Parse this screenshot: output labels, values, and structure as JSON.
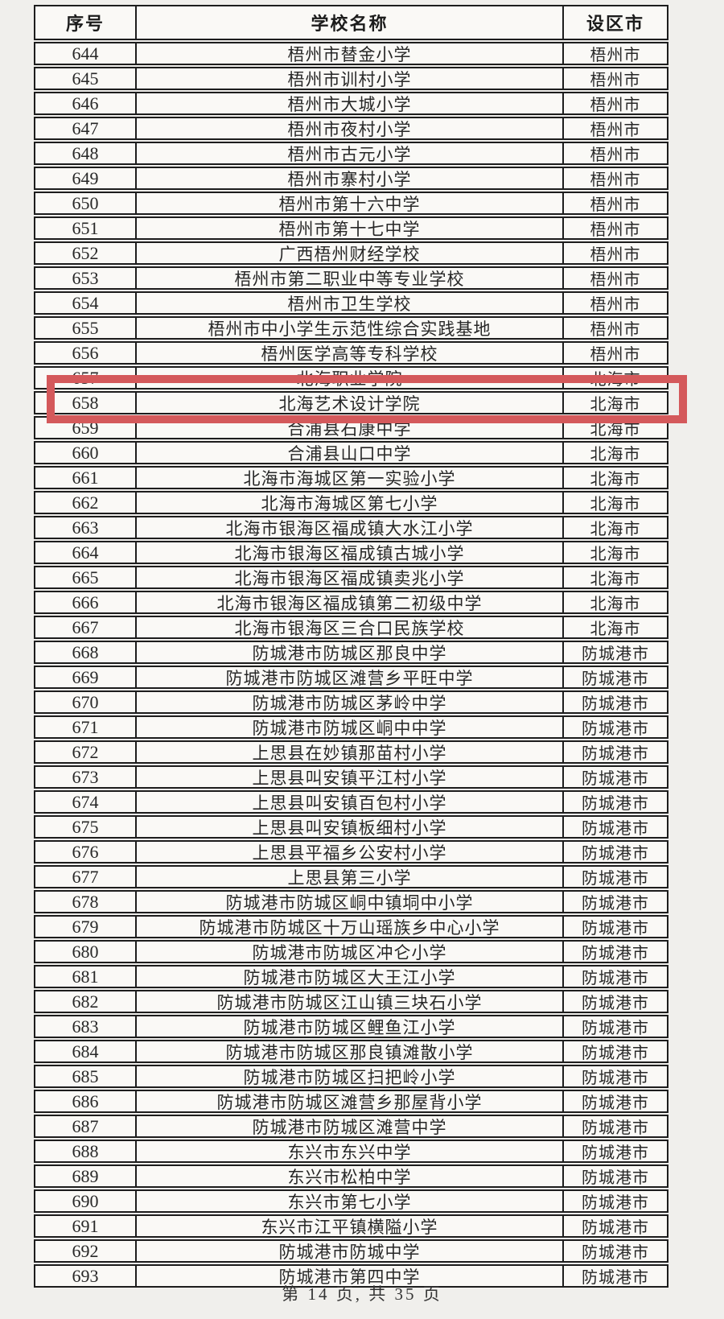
{
  "page": {
    "footer": "第 14 页, 共 35 页"
  },
  "table": {
    "headers": {
      "serial": "序号",
      "school": "学校名称",
      "city": "设区市"
    },
    "highlight_serial": "658",
    "highlight_color": "#d4595b",
    "rows": [
      {
        "serial": "644",
        "school": "梧州市替金小学",
        "city": "梧州市"
      },
      {
        "serial": "645",
        "school": "梧州市训村小学",
        "city": "梧州市"
      },
      {
        "serial": "646",
        "school": "梧州市大城小学",
        "city": "梧州市"
      },
      {
        "serial": "647",
        "school": "梧州市夜村小学",
        "city": "梧州市"
      },
      {
        "serial": "648",
        "school": "梧州市古元小学",
        "city": "梧州市"
      },
      {
        "serial": "649",
        "school": "梧州市寨村小学",
        "city": "梧州市"
      },
      {
        "serial": "650",
        "school": "梧州市第十六中学",
        "city": "梧州市"
      },
      {
        "serial": "651",
        "school": "梧州市第十七中学",
        "city": "梧州市"
      },
      {
        "serial": "652",
        "school": "广西梧州财经学校",
        "city": "梧州市"
      },
      {
        "serial": "653",
        "school": "梧州市第二职业中等专业学校",
        "city": "梧州市"
      },
      {
        "serial": "654",
        "school": "梧州市卫生学校",
        "city": "梧州市"
      },
      {
        "serial": "655",
        "school": "梧州市中小学生示范性综合实践基地",
        "city": "梧州市"
      },
      {
        "serial": "656",
        "school": "梧州医学高等专科学校",
        "city": "梧州市"
      },
      {
        "serial": "657",
        "school": "北海职业学院",
        "city": "北海市"
      },
      {
        "serial": "658",
        "school": "北海艺术设计学院",
        "city": "北海市"
      },
      {
        "serial": "659",
        "school": "合浦县石康中学",
        "city": "北海市"
      },
      {
        "serial": "660",
        "school": "合浦县山口中学",
        "city": "北海市"
      },
      {
        "serial": "661",
        "school": "北海市海城区第一实验小学",
        "city": "北海市"
      },
      {
        "serial": "662",
        "school": "北海市海城区第七小学",
        "city": "北海市"
      },
      {
        "serial": "663",
        "school": "北海市银海区福成镇大水江小学",
        "city": "北海市"
      },
      {
        "serial": "664",
        "school": "北海市银海区福成镇古城小学",
        "city": "北海市"
      },
      {
        "serial": "665",
        "school": "北海市银海区福成镇卖兆小学",
        "city": "北海市"
      },
      {
        "serial": "666",
        "school": "北海市银海区福成镇第二初级中学",
        "city": "北海市"
      },
      {
        "serial": "667",
        "school": "北海市银海区三合口民族学校",
        "city": "北海市"
      },
      {
        "serial": "668",
        "school": "防城港市防城区那良中学",
        "city": "防城港市"
      },
      {
        "serial": "669",
        "school": "防城港市防城区滩营乡平旺中学",
        "city": "防城港市"
      },
      {
        "serial": "670",
        "school": "防城港市防城区茅岭中学",
        "city": "防城港市"
      },
      {
        "serial": "671",
        "school": "防城港市防城区峒中中学",
        "city": "防城港市"
      },
      {
        "serial": "672",
        "school": "上思县在妙镇那苗村小学",
        "city": "防城港市"
      },
      {
        "serial": "673",
        "school": "上思县叫安镇平江村小学",
        "city": "防城港市"
      },
      {
        "serial": "674",
        "school": "上思县叫安镇百包村小学",
        "city": "防城港市"
      },
      {
        "serial": "675",
        "school": "上思县叫安镇板细村小学",
        "city": "防城港市"
      },
      {
        "serial": "676",
        "school": "上思县平福乡公安村小学",
        "city": "防城港市"
      },
      {
        "serial": "677",
        "school": "上思县第三小学",
        "city": "防城港市"
      },
      {
        "serial": "678",
        "school": "防城港市防城区峒中镇垌中小学",
        "city": "防城港市"
      },
      {
        "serial": "679",
        "school": "防城港市防城区十万山瑶族乡中心小学",
        "city": "防城港市"
      },
      {
        "serial": "680",
        "school": "防城港市防城区冲仑小学",
        "city": "防城港市"
      },
      {
        "serial": "681",
        "school": "防城港市防城区大王江小学",
        "city": "防城港市"
      },
      {
        "serial": "682",
        "school": "防城港市防城区江山镇三块石小学",
        "city": "防城港市"
      },
      {
        "serial": "683",
        "school": "防城港市防城区鲤鱼江小学",
        "city": "防城港市"
      },
      {
        "serial": "684",
        "school": "防城港市防城区那良镇滩散小学",
        "city": "防城港市"
      },
      {
        "serial": "685",
        "school": "防城港市防城区扫把岭小学",
        "city": "防城港市"
      },
      {
        "serial": "686",
        "school": "防城港市防城区滩营乡那屋背小学",
        "city": "防城港市"
      },
      {
        "serial": "687",
        "school": "防城港市防城区滩营中学",
        "city": "防城港市"
      },
      {
        "serial": "688",
        "school": "东兴市东兴中学",
        "city": "防城港市"
      },
      {
        "serial": "689",
        "school": "东兴市松柏中学",
        "city": "防城港市"
      },
      {
        "serial": "690",
        "school": "东兴市第七小学",
        "city": "防城港市"
      },
      {
        "serial": "691",
        "school": "东兴市江平镇横隘小学",
        "city": "防城港市"
      },
      {
        "serial": "692",
        "school": "防城港市防城中学",
        "city": "防城港市"
      },
      {
        "serial": "693",
        "school": "防城港市第四中学",
        "city": "防城港市"
      }
    ]
  }
}
